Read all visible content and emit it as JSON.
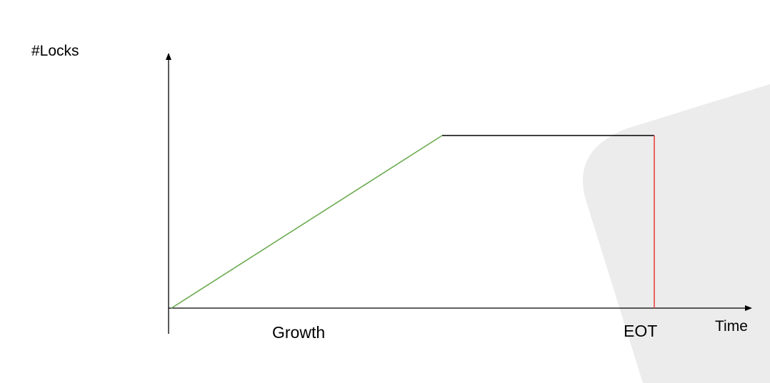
{
  "diagram": {
    "y_axis_label": "#Locks",
    "x_axis_label": "Time",
    "phase_label": "Growth",
    "end_marker_label": "EOT",
    "colors": {
      "axis": "#000000",
      "growth_line": "#6aaa4e",
      "hold_line": "#000000",
      "release_line": "#e8453c",
      "background_shape": "#ececec"
    }
  }
}
